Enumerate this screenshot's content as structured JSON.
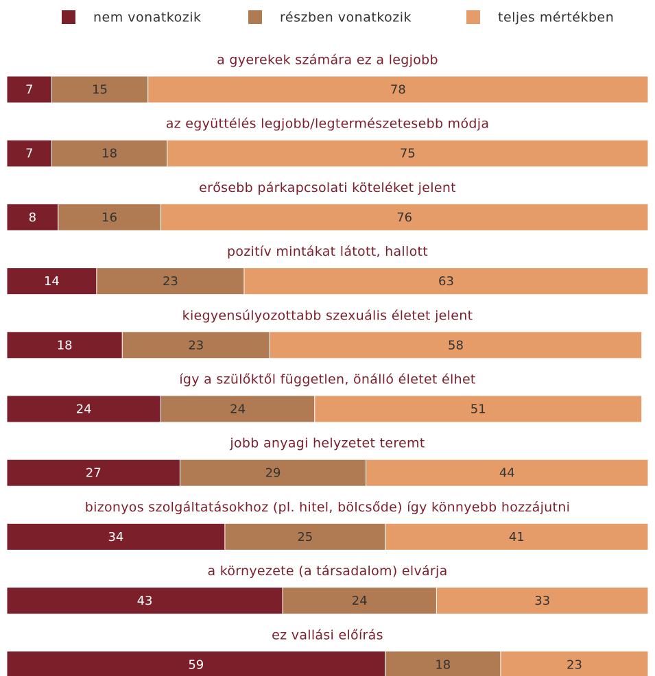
{
  "chart_data": {
    "type": "stacked_bar",
    "categories": [
      "a gyerekek számára ez a legjobb",
      "az együttélés legjobb/legtermészetesebb módja",
      "erősebb párkapcsolati köteléket jelent",
      "pozitív mintákat látott, hallott",
      "kiegyensúlyozottabb szexuális életet jelent",
      "így a szülőktől független, önálló életet élhet",
      "jobb anyagi helyzetet teremt",
      "bizonyos szolgáltatásokhoz (pl. hitel, bölcsőde) így könnyebb hozzájutni",
      "a környezete (a társadalom) elvárja",
      "ez vallási előírás"
    ],
    "series": [
      {
        "name": "nem vonatkozik",
        "color": "#7b1f2b",
        "values": [
          7,
          7,
          8,
          14,
          18,
          24,
          27,
          34,
          43,
          59
        ]
      },
      {
        "name": "részben vonatkozik",
        "color": "#b07a52",
        "values": [
          15,
          18,
          16,
          23,
          23,
          24,
          29,
          25,
          24,
          18
        ]
      },
      {
        "name": "teljes mértékben",
        "color": "#e59c68",
        "values": [
          78,
          75,
          76,
          63,
          58,
          51,
          44,
          41,
          33,
          23
        ]
      }
    ],
    "xlim": [
      0,
      100
    ],
    "legend": "top"
  }
}
